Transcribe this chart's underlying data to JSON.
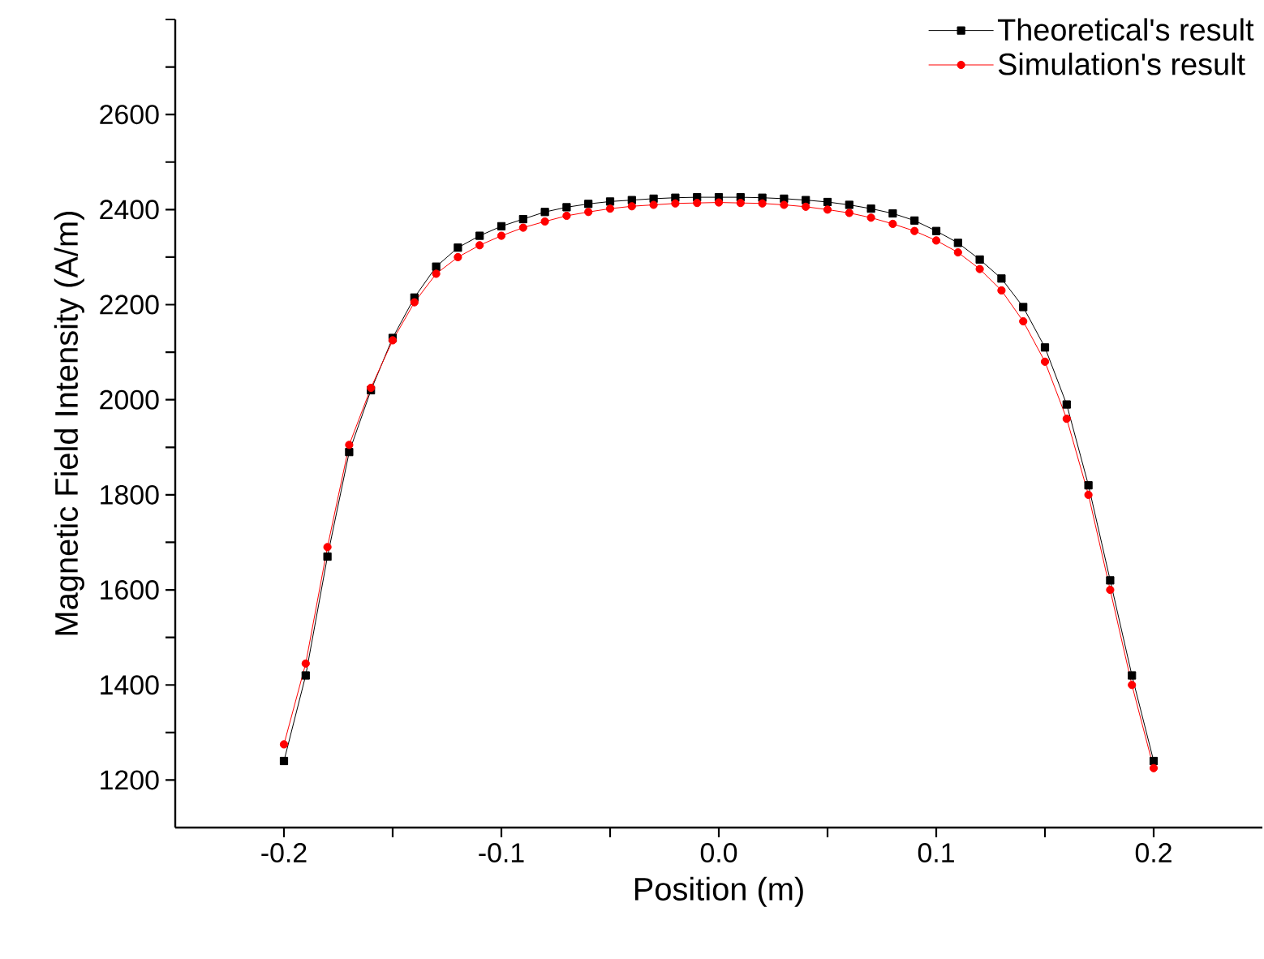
{
  "chart_data": {
    "type": "line",
    "xlabel": "Position (m)",
    "ylabel": "Magnetic Field Intensity (A/m)",
    "x": [
      -0.2,
      -0.19,
      -0.18,
      -0.17,
      -0.16,
      -0.15,
      -0.14,
      -0.13,
      -0.12,
      -0.11,
      -0.1,
      -0.09,
      -0.08,
      -0.07,
      -0.06,
      -0.05,
      -0.04,
      -0.03,
      -0.02,
      -0.01,
      0,
      0.01,
      0.02,
      0.03,
      0.04,
      0.05,
      0.06,
      0.07,
      0.08,
      0.09,
      0.1,
      0.11,
      0.12,
      0.13,
      0.14,
      0.15,
      0.16,
      0.17,
      0.18,
      0.19,
      0.2
    ],
    "series": [
      {
        "name": "Theoretical's result",
        "color": "#000000",
        "marker": "square",
        "values": [
          1240,
          1420,
          1670,
          1890,
          2020,
          2130,
          2215,
          2280,
          2320,
          2345,
          2365,
          2380,
          2395,
          2405,
          2412,
          2417,
          2420,
          2423,
          2425,
          2426,
          2426,
          2426,
          2425,
          2423,
          2420,
          2416,
          2410,
          2402,
          2392,
          2377,
          2355,
          2330,
          2295,
          2255,
          2195,
          2110,
          1990,
          1820,
          1620,
          1420,
          1240
        ]
      },
      {
        "name": "Simulation's result",
        "color": "#ff0000",
        "marker": "circle",
        "values": [
          1275,
          1445,
          1690,
          1905,
          2025,
          2125,
          2205,
          2265,
          2300,
          2325,
          2345,
          2362,
          2375,
          2387,
          2395,
          2402,
          2407,
          2410,
          2413,
          2414,
          2415,
          2414,
          2413,
          2410,
          2406,
          2400,
          2393,
          2383,
          2370,
          2355,
          2335,
          2310,
          2275,
          2230,
          2165,
          2080,
          1960,
          1800,
          1600,
          1400,
          1225
        ]
      }
    ],
    "xlim": [
      -0.25,
      0.25
    ],
    "xticks": [
      -0.2,
      -0.1,
      {
        "value": 0,
        "label": "0.0"
      },
      0.1,
      0.2
    ],
    "ylim": [
      1100,
      2800
    ],
    "yticks": [
      1200,
      1400,
      1600,
      1800,
      2000,
      2200,
      2400,
      2600,
      {
        "value": 2800,
        "label": null
      }
    ],
    "grid": false,
    "legend": "top right",
    "line_style": "solid"
  }
}
